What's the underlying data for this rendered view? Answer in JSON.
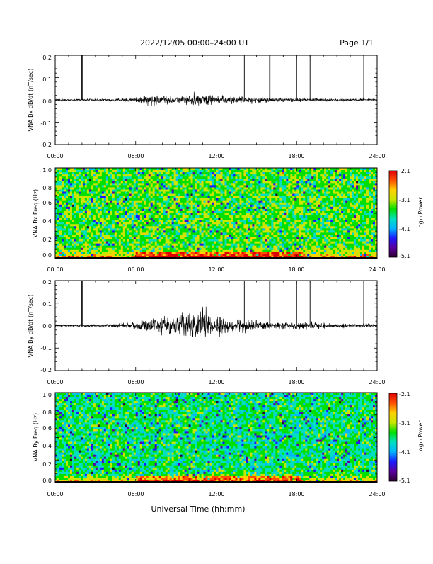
{
  "header": {
    "title": "2022/12/05  00:00–24:00 UT",
    "page": "Page 1/1"
  },
  "x_axis_title": "Universal Time (hh:mm)",
  "colormap": [
    "#2b002e",
    "#5a00a0",
    "#1a1aff",
    "#00b4ff",
    "#00e0c0",
    "#00e000",
    "#c8e600",
    "#ffd000",
    "#ff5000",
    "#e00000"
  ],
  "chart_data": [
    {
      "type": "line",
      "ylabel": "VNA Bx dB/dt (nT/sec)",
      "ylim": [
        -0.2,
        0.2
      ],
      "yticks": [
        "0.2",
        "0.1",
        "0.0",
        "-0.1",
        "-0.2"
      ],
      "xlim": [
        0,
        24
      ],
      "xticks": [
        "00:00",
        "06:00",
        "12:00",
        "18:00",
        "24:00"
      ],
      "envelope_x_hours": [
        0,
        1,
        2,
        3,
        4,
        5,
        6,
        6.5,
        7,
        7.5,
        8,
        8.5,
        9,
        9.5,
        10,
        10.5,
        11,
        11.5,
        12,
        12.5,
        13,
        13.5,
        14,
        15,
        16,
        17,
        18,
        19,
        20,
        21,
        22,
        23,
        24
      ],
      "envelope_amplitude": [
        0.005,
        0.005,
        0.006,
        0.006,
        0.007,
        0.008,
        0.012,
        0.02,
        0.03,
        0.035,
        0.025,
        0.022,
        0.02,
        0.022,
        0.03,
        0.035,
        0.03,
        0.028,
        0.025,
        0.022,
        0.018,
        0.016,
        0.02,
        0.015,
        0.012,
        0.01,
        0.01,
        0.01,
        0.009,
        0.008,
        0.007,
        0.006,
        0.006
      ],
      "spikes_hours": [
        2.0,
        11.1,
        14.1,
        16.0,
        18.0,
        19.0,
        23.0
      ],
      "spike_peak": 0.2
    },
    {
      "type": "heatmap",
      "ylabel": "VNA Bx Freq (Hz)",
      "ylim": [
        0.0,
        1.0
      ],
      "yticks": [
        "1.0",
        "0.8",
        "0.6",
        "0.4",
        "0.2",
        "0.0"
      ],
      "xlim": [
        0,
        24
      ],
      "xticks": [
        "00:00",
        "06:00",
        "12:00",
        "18:00",
        "24:00"
      ],
      "colorbar_label": "Log₁₀ Power",
      "colorbar_range": [
        -5.1,
        -2.1
      ],
      "colorbar_ticks": [
        "-2.1",
        "-3.1",
        "-4.1",
        "-5.1"
      ],
      "dominant_level": -3.4,
      "low_freq_enhancement_hours": [
        6.0,
        18.5
      ]
    },
    {
      "type": "line",
      "ylabel": "VNA By dB/dt (nT/sec)",
      "ylim": [
        -0.2,
        0.2
      ],
      "yticks": [
        "0.2",
        "0.1",
        "0.0",
        "-0.1",
        "-0.2"
      ],
      "xlim": [
        0,
        24
      ],
      "xticks": [
        "00:00",
        "06:00",
        "12:00",
        "18:00",
        "24:00"
      ],
      "envelope_x_hours": [
        0,
        1,
        2,
        3,
        4,
        5,
        6,
        6.5,
        7,
        7.5,
        8,
        8.5,
        9,
        9.5,
        10,
        10.5,
        11,
        11.5,
        12,
        12.5,
        13,
        13.5,
        14,
        15,
        16,
        17,
        18,
        19,
        20,
        21,
        22,
        23,
        24
      ],
      "envelope_amplitude": [
        0.006,
        0.006,
        0.008,
        0.008,
        0.01,
        0.012,
        0.018,
        0.025,
        0.035,
        0.04,
        0.045,
        0.05,
        0.055,
        0.06,
        0.07,
        0.08,
        0.075,
        0.06,
        0.05,
        0.045,
        0.04,
        0.035,
        0.035,
        0.025,
        0.02,
        0.02,
        0.018,
        0.02,
        0.015,
        0.012,
        0.01,
        0.009,
        0.008
      ],
      "spikes_hours": [
        2.0,
        11.1,
        14.1,
        16.0,
        18.0,
        19.0,
        23.0
      ],
      "spike_peak": 0.2
    },
    {
      "type": "heatmap",
      "ylabel": "VNA By Freq (Hz)",
      "ylim": [
        0.0,
        1.0
      ],
      "yticks": [
        "1.0",
        "0.8",
        "0.6",
        "0.4",
        "0.2",
        "0.0"
      ],
      "xlim": [
        0,
        24
      ],
      "xticks": [
        "00:00",
        "06:00",
        "12:00",
        "18:00",
        "24:00"
      ],
      "colorbar_label": "Log₁₀ Power",
      "colorbar_range": [
        -5.1,
        -2.1
      ],
      "colorbar_ticks": [
        "-2.1",
        "-3.1",
        "-4.1",
        "-5.1"
      ],
      "dominant_level": -3.6,
      "low_freq_enhancement_hours": [
        6.0,
        18.5
      ]
    }
  ]
}
